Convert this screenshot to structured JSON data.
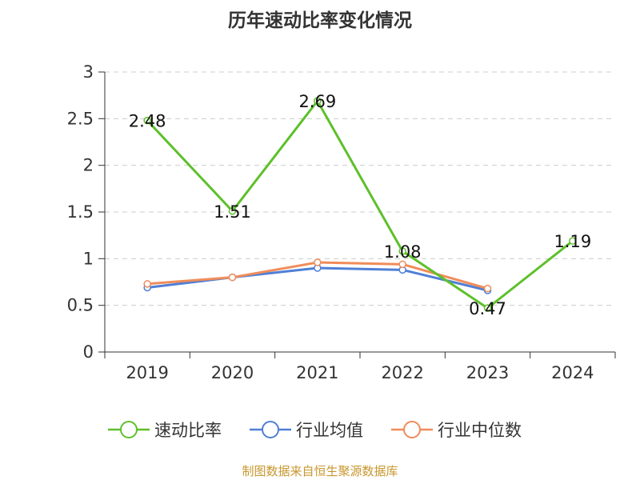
{
  "title": "历年速动比率变化情况",
  "source": "制图数据来自恒生聚源数据库",
  "colors": {
    "速动比率": "#5ec02b",
    "行业均值": "#4f7fd6",
    "行业中位数": "#f08c5a",
    "grid": "#cccccc",
    "axis": "#333333"
  },
  "chart_data": {
    "type": "line",
    "title": "历年速动比率变化情况",
    "categories": [
      "2019",
      "2020",
      "2021",
      "2022",
      "2023",
      "2024"
    ],
    "ylim": [
      0,
      3
    ],
    "yticks": [
      "0",
      "0.5",
      "1",
      "1.5",
      "2",
      "2.5",
      "3"
    ],
    "grid": true,
    "legend_position": "bottom",
    "series": [
      {
        "name": "速动比率",
        "values": [
          2.48,
          1.51,
          2.69,
          1.08,
          0.47,
          1.19
        ],
        "labels": [
          "2.48",
          "1.51",
          "2.69",
          "1.08",
          "0.47",
          "1.19"
        ]
      },
      {
        "name": "行业均值",
        "values": [
          0.69,
          0.8,
          0.9,
          0.88,
          0.66,
          null
        ]
      },
      {
        "name": "行业中位数",
        "values": [
          0.73,
          0.8,
          0.96,
          0.94,
          0.68,
          null
        ]
      }
    ]
  }
}
